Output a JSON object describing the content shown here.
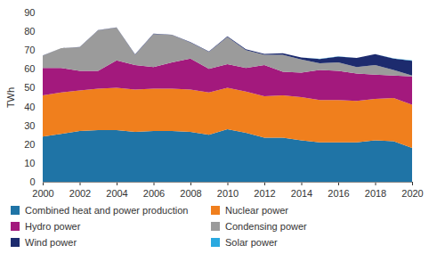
{
  "chart_data": {
    "type": "area",
    "stacked": true,
    "legend": "bottom",
    "grid": false,
    "y_label": "TWh",
    "x": [
      2000,
      2001,
      2002,
      2003,
      2004,
      2005,
      2006,
      2007,
      2008,
      2009,
      2010,
      2011,
      2012,
      2013,
      2014,
      2015,
      2016,
      2017,
      2018,
      2019,
      2020
    ],
    "xlim": [
      2000,
      2020
    ],
    "xticks": [
      2000,
      2002,
      2004,
      2006,
      2008,
      2010,
      2012,
      2014,
      2016,
      2018,
      2020
    ],
    "ylim": [
      0,
      90
    ],
    "yticks": [
      0,
      10,
      20,
      30,
      40,
      50,
      60,
      70,
      80,
      90
    ],
    "series": [
      {
        "name": "Combined heat and power production",
        "color": "#1f74a6",
        "values": [
          24,
          25.5,
          27,
          27.5,
          27.5,
          26.5,
          27,
          27,
          26.5,
          25,
          28,
          26,
          23.5,
          23.5,
          22,
          21,
          21,
          21,
          22,
          21.5,
          18
        ]
      },
      {
        "name": "Nuclear power",
        "color": "#f07f1d",
        "values": [
          22,
          22,
          21.5,
          22,
          22.5,
          22.5,
          22.5,
          22.5,
          22.5,
          22.5,
          22,
          22,
          22,
          22.5,
          23,
          22.5,
          22.5,
          22,
          22,
          23,
          23
        ]
      },
      {
        "name": "Hydro power",
        "color": "#a3197d",
        "values": [
          14.5,
          13,
          10.5,
          9.5,
          14.5,
          13,
          11.5,
          14,
          16.5,
          12.5,
          12.5,
          12.5,
          16.5,
          12.5,
          13,
          16,
          15.5,
          14.5,
          13,
          12,
          15
        ]
      },
      {
        "name": "Condensing power",
        "color": "#9b9b9b",
        "values": [
          6.5,
          10.5,
          12.5,
          21.5,
          17.5,
          5.5,
          17.5,
          14.5,
          8.5,
          9,
          14.5,
          9.5,
          5.5,
          9,
          7,
          3.5,
          4.5,
          3.5,
          5,
          3,
          0.5
        ]
      },
      {
        "name": "Wind power",
        "color": "#1d2b6e",
        "values": [
          0.1,
          0.1,
          0.1,
          0.1,
          0.1,
          0.2,
          0.2,
          0.2,
          0.3,
          0.3,
          0.3,
          0.5,
          0.5,
          0.8,
          1.1,
          2.3,
          3.1,
          4.8,
          5.8,
          6,
          7.8
        ]
      },
      {
        "name": "Solar power",
        "color": "#2aa9e0",
        "values": [
          0,
          0,
          0,
          0,
          0,
          0,
          0,
          0,
          0,
          0,
          0,
          0,
          0,
          0,
          0,
          0.01,
          0.02,
          0.03,
          0.05,
          0.1,
          0.2
        ]
      }
    ]
  }
}
